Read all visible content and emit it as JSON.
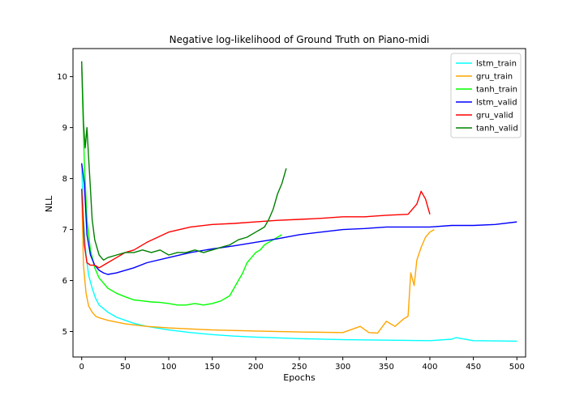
{
  "chart_data": {
    "type": "line",
    "title": "Negative log-likelihood of Ground Truth on Piano-midi",
    "xlabel": "Epochs",
    "ylabel": "NLL",
    "xlim": [
      -10,
      510
    ],
    "ylim": [
      4.5,
      10.55
    ],
    "xticks": [
      0,
      50,
      100,
      150,
      200,
      250,
      300,
      350,
      400,
      450,
      500
    ],
    "yticks": [
      5,
      6,
      7,
      8,
      9,
      10
    ],
    "grid": false,
    "legend_position": "top-right",
    "series": [
      {
        "name": "lstm_train",
        "color": "#00ffff",
        "x": [
          0,
          2,
          5,
          8,
          12,
          16,
          20,
          25,
          30,
          40,
          50,
          60,
          75,
          100,
          125,
          150,
          175,
          200,
          250,
          300,
          350,
          400,
          425,
          430,
          450,
          500
        ],
        "y": [
          8.3,
          7.2,
          6.5,
          6.1,
          5.85,
          5.65,
          5.52,
          5.45,
          5.38,
          5.28,
          5.22,
          5.16,
          5.1,
          5.03,
          4.98,
          4.94,
          4.91,
          4.89,
          4.86,
          4.84,
          4.83,
          4.82,
          4.85,
          4.88,
          4.82,
          4.81
        ]
      },
      {
        "name": "gru_train",
        "color": "#ffa500",
        "x": [
          0,
          2,
          5,
          8,
          12,
          16,
          20,
          30,
          50,
          75,
          100,
          150,
          200,
          250,
          300,
          320,
          330,
          340,
          350,
          360,
          370,
          375,
          378,
          382,
          385,
          390,
          395,
          400,
          405
        ],
        "y": [
          7.8,
          6.3,
          5.75,
          5.5,
          5.38,
          5.3,
          5.27,
          5.22,
          5.15,
          5.1,
          5.07,
          5.03,
          5.01,
          4.99,
          4.98,
          5.1,
          4.98,
          4.97,
          5.2,
          5.1,
          5.25,
          5.3,
          6.15,
          5.9,
          6.4,
          6.65,
          6.85,
          6.95,
          7.0
        ]
      },
      {
        "name": "tanh_train",
        "color": "#00ff00",
        "x": [
          0,
          3,
          6,
          10,
          15,
          20,
          25,
          30,
          40,
          50,
          60,
          70,
          80,
          90,
          100,
          110,
          120,
          130,
          140,
          150,
          160,
          170,
          175,
          180,
          185,
          190,
          195,
          200,
          205,
          210,
          215,
          220,
          225,
          230
        ],
        "y": [
          10.2,
          8.3,
          7.2,
          6.6,
          6.25,
          6.05,
          5.95,
          5.85,
          5.75,
          5.68,
          5.62,
          5.6,
          5.58,
          5.57,
          5.55,
          5.52,
          5.52,
          5.55,
          5.52,
          5.55,
          5.6,
          5.7,
          5.85,
          6.0,
          6.15,
          6.35,
          6.45,
          6.55,
          6.6,
          6.7,
          6.75,
          6.8,
          6.85,
          6.9
        ]
      },
      {
        "name": "lstm_valid",
        "color": "#0000ff",
        "x": [
          0,
          3,
          6,
          10,
          15,
          20,
          25,
          30,
          40,
          50,
          60,
          75,
          100,
          125,
          150,
          175,
          200,
          225,
          250,
          275,
          300,
          325,
          350,
          375,
          400,
          425,
          450,
          475,
          500
        ],
        "y": [
          8.3,
          7.9,
          6.9,
          6.5,
          6.3,
          6.2,
          6.15,
          6.12,
          6.15,
          6.2,
          6.25,
          6.35,
          6.45,
          6.55,
          6.62,
          6.68,
          6.75,
          6.82,
          6.9,
          6.95,
          7.0,
          7.02,
          7.05,
          7.05,
          7.05,
          7.08,
          7.08,
          7.1,
          7.15
        ]
      },
      {
        "name": "gru_valid",
        "color": "#ff0000",
        "x": [
          0,
          3,
          6,
          10,
          15,
          20,
          25,
          30,
          40,
          50,
          60,
          75,
          100,
          125,
          150,
          175,
          200,
          225,
          250,
          275,
          300,
          325,
          350,
          375,
          385,
          390,
          395,
          400
        ],
        "y": [
          7.8,
          6.7,
          6.35,
          6.3,
          6.3,
          6.25,
          6.3,
          6.35,
          6.45,
          6.55,
          6.6,
          6.75,
          6.95,
          7.05,
          7.1,
          7.12,
          7.15,
          7.18,
          7.2,
          7.22,
          7.25,
          7.25,
          7.28,
          7.3,
          7.5,
          7.75,
          7.6,
          7.3
        ]
      },
      {
        "name": "tanh_valid",
        "color": "#008000",
        "x": [
          0,
          2,
          4,
          6,
          8,
          10,
          12,
          15,
          20,
          25,
          30,
          40,
          50,
          60,
          70,
          80,
          90,
          100,
          110,
          120,
          130,
          140,
          150,
          160,
          170,
          180,
          190,
          200,
          205,
          210,
          215,
          220,
          225,
          230,
          235
        ],
        "y": [
          10.3,
          9.1,
          8.6,
          9.0,
          8.4,
          7.8,
          7.2,
          6.8,
          6.5,
          6.4,
          6.45,
          6.5,
          6.55,
          6.55,
          6.6,
          6.55,
          6.6,
          6.5,
          6.55,
          6.55,
          6.6,
          6.55,
          6.6,
          6.65,
          6.7,
          6.8,
          6.85,
          6.95,
          7.0,
          7.05,
          7.2,
          7.4,
          7.7,
          7.9,
          8.2
        ]
      }
    ]
  }
}
